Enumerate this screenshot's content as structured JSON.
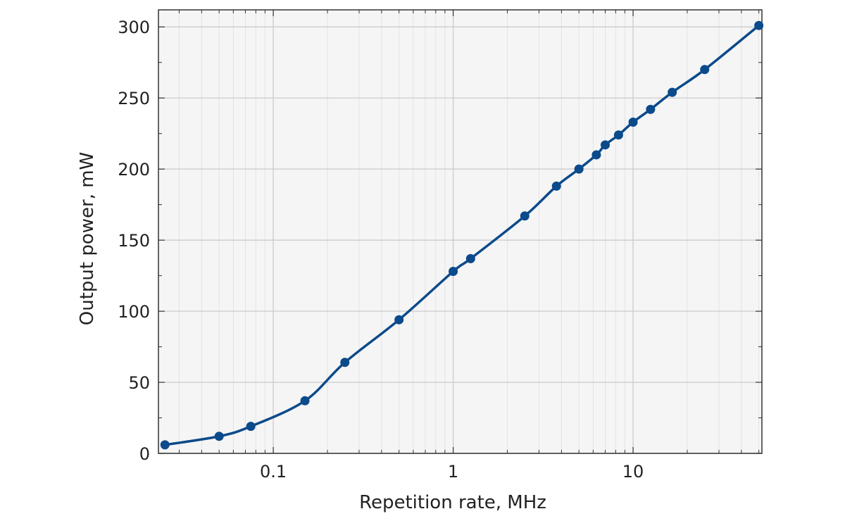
{
  "chart_data": {
    "type": "line",
    "xlabel": "Repetition rate, MHz",
    "ylabel": "Output power, mW",
    "x_scale": "log",
    "xlim": [
      0.023,
      52
    ],
    "ylim": [
      0,
      312
    ],
    "x_ticks": [
      0.1,
      1,
      10
    ],
    "x_tick_labels": [
      "0.1",
      "1",
      "10"
    ],
    "y_ticks": [
      0,
      50,
      100,
      150,
      200,
      250,
      300
    ],
    "y_tick_labels": [
      "0",
      "50",
      "100",
      "150",
      "200",
      "250",
      "300"
    ],
    "grid": true,
    "minor_grid": true,
    "series": [
      {
        "color": "#0b4a8b",
        "marker": "circle",
        "x": [
          0.025,
          0.05,
          0.075,
          0.15,
          0.25,
          0.5,
          1,
          1.25,
          2.5,
          3.75,
          5,
          6.25,
          7,
          8.3,
          10,
          12.5,
          16.5,
          25,
          50
        ],
        "y": [
          6,
          12,
          19,
          37,
          64,
          94,
          128,
          137,
          167,
          188,
          200,
          210,
          217,
          224,
          233,
          242,
          254,
          270,
          301
        ]
      }
    ]
  }
}
